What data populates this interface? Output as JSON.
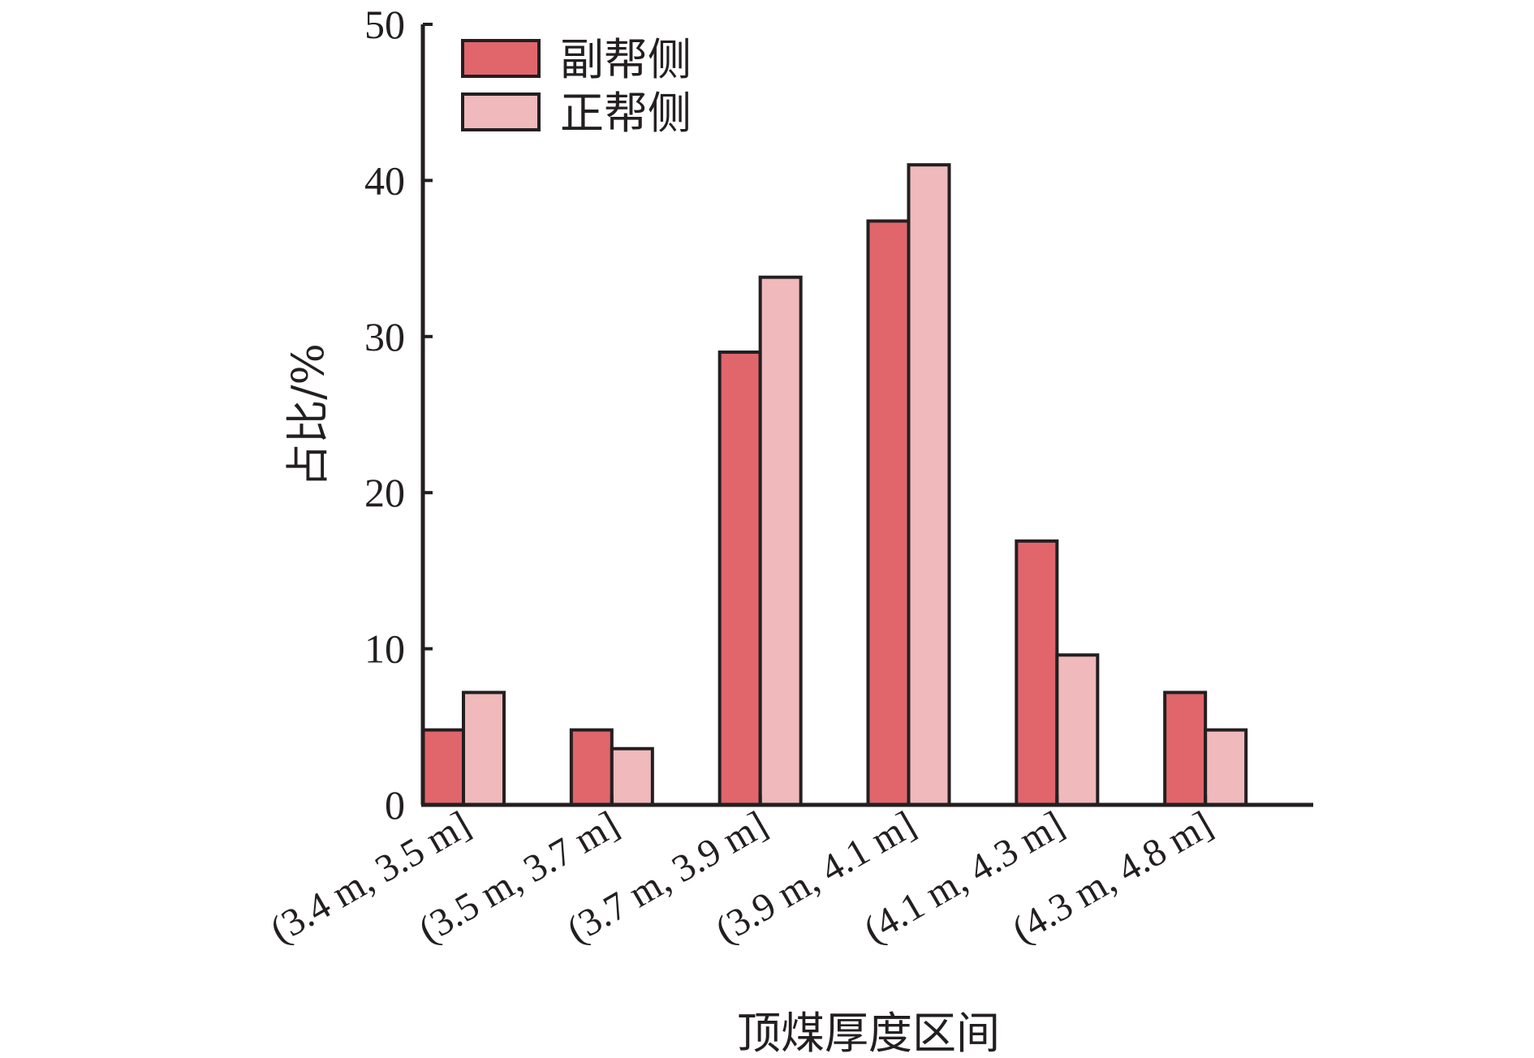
{
  "chart_data": {
    "type": "bar",
    "title": "",
    "xlabel": "顶煤厚度区间",
    "ylabel": "占比/%",
    "ylim": [
      0,
      50
    ],
    "yticks": [
      0,
      10,
      20,
      30,
      40,
      50
    ],
    "categories": [
      "(3.4 m, 3.5 m]",
      "(3.5 m, 3.7 m]",
      "(3.7 m, 3.9 m]",
      "(3.9 m, 4.1 m]",
      "(4.1 m, 4.3 m]",
      "(4.3 m, 4.8 m]"
    ],
    "series": [
      {
        "name": "副帮侧",
        "color": "#e0666c",
        "values": [
          4.8,
          4.8,
          29.0,
          37.4,
          16.9,
          7.2
        ]
      },
      {
        "name": "正帮侧",
        "color": "#f0b9bc",
        "values": [
          7.2,
          3.6,
          33.8,
          41.0,
          9.6,
          4.8
        ]
      }
    ],
    "legend_position": "top-left",
    "grid": false
  }
}
